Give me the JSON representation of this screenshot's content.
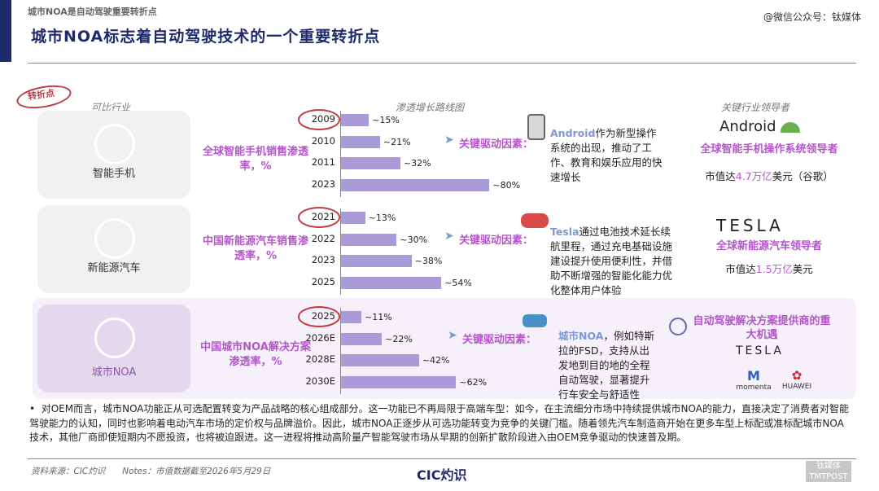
{
  "header": {
    "top_label": "城市NOA是自动驾驶重要转折点",
    "watermark": "@微信公众号：钛媒体",
    "title": "城市NOA标志着自动驾驶技术的一个重要转折点",
    "tag": "转折点"
  },
  "columns": {
    "industry": "可比行业",
    "path": "渗透增长路线图",
    "leaders": "关键行业领导者"
  },
  "rows": [
    {
      "industry": "智能手机",
      "metric": "全球智能手机销售渗透率，%",
      "years": [
        "2009",
        "2010",
        "2011",
        "2023"
      ],
      "labels": [
        "~15%",
        "~21%",
        "~32%",
        "~80%"
      ],
      "values": [
        15,
        21,
        32,
        80
      ],
      "driver": "关键驱动因素：",
      "desc_hl": "Android",
      "desc": "作为新型操作系统的出现，推动了工作、教育和娱乐应用的快速增长",
      "leader_logo": "Android",
      "leader_title": "全球智能手机操作系统领导者",
      "mcap_pre": "市值达",
      "mcap_num": "4.7万亿",
      "mcap_post": "美元（谷歌）"
    },
    {
      "industry": "新能源汽车",
      "metric": "中国新能源汽车销售渗透率，%",
      "years": [
        "2021",
        "2022",
        "2023",
        "2025"
      ],
      "labels": [
        "~13%",
        "~30%",
        "~38%",
        "~54%"
      ],
      "values": [
        13,
        30,
        38,
        54
      ],
      "driver": "关键驱动因素：",
      "desc_hl": "Tesla",
      "desc": "通过电池技术延长续航里程，通过充电基础设施建设提升使用便利性，并借助不断增强的智能化能力优化整体用户体验",
      "leader_logo": "TESLA",
      "leader_title": "全球新能源汽车领导者",
      "mcap_pre": "市值达",
      "mcap_num": "1.5万亿",
      "mcap_post": "美元"
    },
    {
      "industry": "城市NOA",
      "metric": "中国城市NOA解决方案渗透率，%",
      "years": [
        "2025",
        "2026E",
        "2028E",
        "2030E"
      ],
      "labels": [
        "~11%",
        "~22%",
        "~42%",
        "~62%"
      ],
      "values": [
        11,
        22,
        42,
        62
      ],
      "driver": "关键驱动因素：",
      "desc_hl": "城市NOA",
      "desc": "，例如特斯拉的FSD，支持从出发地到目的地的全程自动驾驶，显著提升行车安全与舒适性",
      "leader_title": "自动驾驶解决方案提供商的重大机遇",
      "logos": [
        "TESLA",
        "momenta",
        "HUAWEI"
      ]
    }
  ],
  "bullet": "对OEM而言，城市NOA功能正从可选配置转变为产品战略的核心组成部分。这一功能已不再局限于高端车型：如今，在主流细分市场中持续提供城市NOA的能力，直接决定了消费者对智能驾驶能力的认知，同时也影响着电动汽车市场的定价权与品牌溢价。因此，城市NOA正逐步从可选功能转变为竞争的关键门槛。随着领先汽车制造商开始在更多车型上标配或准标配城市NOA技术，其他厂商即使短期内不愿投资，也将被迫跟进。这一进程将推动高阶量产智能驾驶市场从早期的创新扩散阶段进入由OEM竞争驱动的快速普及期。",
  "footer": {
    "source": "资料来源：CIC灼识　　Notes：市值数据截至2026年5月29日",
    "logo": "CIC灼识",
    "corner": "钛媒体 TMTPOST"
  }
}
